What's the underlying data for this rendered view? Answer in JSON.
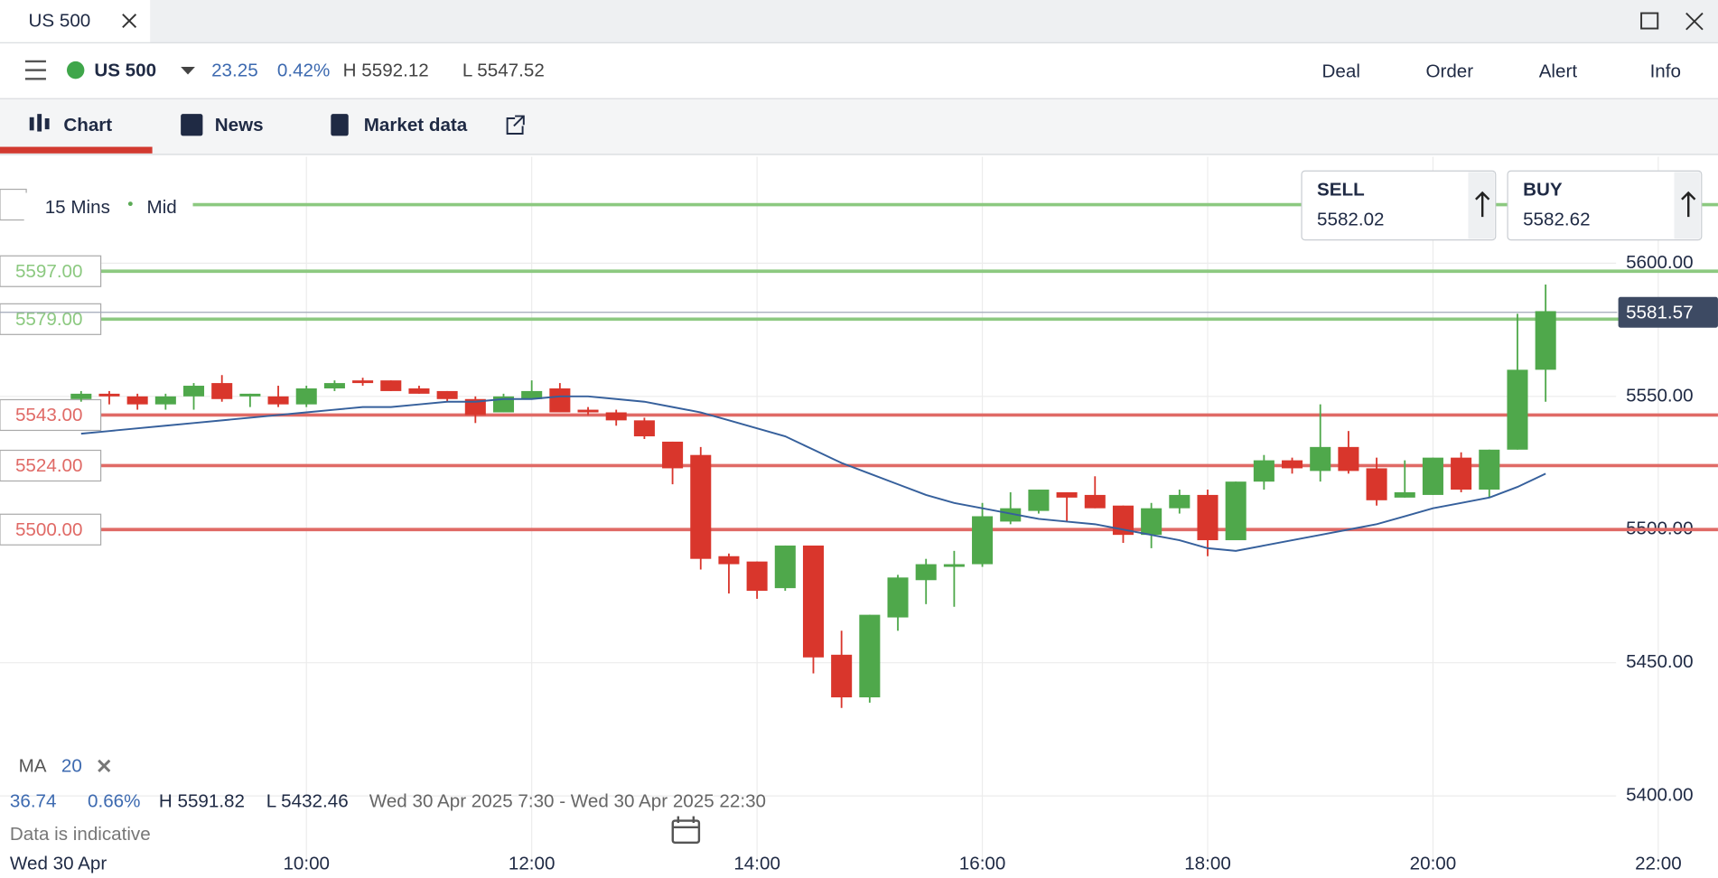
{
  "window": {
    "tab_title": "US 500"
  },
  "header": {
    "instrument": "US 500",
    "change": "23.25",
    "change_pct": "0.42%",
    "high": "H 5592.12",
    "low": "L 5547.52",
    "actions": [
      "Deal",
      "Order",
      "Alert",
      "Info"
    ]
  },
  "nav": {
    "tabs": [
      "Chart",
      "News",
      "Market data"
    ]
  },
  "ticket": {
    "sell_label": "SELL",
    "sell_price": "5582.02",
    "buy_label": "BUY",
    "buy_price": "5582.62"
  },
  "footer": {
    "change": "36.74",
    "change_pct": "0.66%",
    "high": "H 5591.82",
    "low": "L 5432.46",
    "range": "Wed 30 Apr 2025 7:30 - Wed 30 Apr 2025 22:30",
    "note": "Data is indicative"
  },
  "chart_data": {
    "type": "candlestick",
    "interval": "15 Mins",
    "price_type": "Mid",
    "x_start_label": "Wed 30 Apr",
    "x": [
      8,
      8.25,
      8.5,
      8.75,
      9,
      9.25,
      9.5,
      9.75,
      10,
      10.25,
      10.5,
      10.75,
      11,
      11.25,
      11.5,
      11.75,
      12,
      12.25,
      12.5,
      12.75,
      13,
      13.25,
      13.5,
      13.75,
      14,
      14.25,
      14.5,
      14.75,
      15,
      15.25,
      15.5,
      15.75,
      16,
      16.25,
      16.5,
      16.75,
      17,
      17.25,
      17.5,
      17.75,
      18,
      18.25,
      18.5,
      18.75,
      19,
      19.25,
      19.5,
      19.75,
      20,
      20.25,
      20.5,
      20.75,
      21
    ],
    "open": [
      5549,
      5551,
      5550,
      5547,
      5550,
      5555,
      5550,
      5550,
      5547,
      5553,
      5556,
      5556,
      5553,
      5552,
      5549,
      5544,
      5549,
      5553,
      5545,
      5544,
      5541,
      5533,
      5528,
      5490,
      5488,
      5478,
      5494,
      5453,
      5437,
      5467,
      5481,
      5486,
      5487,
      5503,
      5507,
      5514,
      5513,
      5509,
      5498,
      5508,
      5513,
      5496,
      5518,
      5526,
      5522,
      5531,
      5523,
      5512,
      5513,
      5527,
      5515,
      5530,
      5560
    ],
    "high": [
      5552,
      5552,
      5551,
      5551,
      5555,
      5558,
      5551,
      5554,
      5554,
      5556,
      5557,
      5556,
      5554,
      5552,
      5550,
      5551,
      5556,
      5555,
      5546,
      5545,
      5542,
      5533,
      5531,
      5491,
      5488,
      5494,
      5494,
      5462,
      5468,
      5483,
      5489,
      5492,
      5510,
      5514,
      5515,
      5514,
      5520,
      5509,
      5510,
      5515,
      5515,
      5518,
      5528,
      5527,
      5547,
      5537,
      5527,
      5526,
      5527,
      5529,
      5530,
      5581,
      5592
    ],
    "low": [
      5548,
      5547,
      5545,
      5545,
      5545,
      5548,
      5546,
      5546,
      5546,
      5552,
      5554,
      5552,
      5551,
      5548,
      5540,
      5544,
      5549,
      5544,
      5543,
      5539,
      5534,
      5517,
      5485,
      5476,
      5474,
      5477,
      5446,
      5433,
      5435,
      5462,
      5472,
      5471,
      5486,
      5502,
      5506,
      5503,
      5508,
      5495,
      5493,
      5506,
      5490,
      5496,
      5515,
      5521,
      5518,
      5521,
      5509,
      5512,
      5513,
      5514,
      5512,
      5530,
      5548
    ],
    "close": [
      5551,
      5550,
      5547,
      5550,
      5554,
      5549,
      5551,
      5547,
      5553,
      5555,
      5555,
      5552,
      5551,
      5549,
      5543,
      5550,
      5552,
      5544,
      5544,
      5541,
      5535,
      5523,
      5489,
      5487,
      5477,
      5494,
      5452,
      5437,
      5468,
      5482,
      5487,
      5487,
      5505,
      5508,
      5515,
      5512,
      5508,
      5498,
      5508,
      5513,
      5496,
      5518,
      5526,
      5523,
      5531,
      5522,
      5511,
      5514,
      5527,
      5515,
      5530,
      5560,
      5582
    ],
    "up_color": "#4fa84b",
    "down_color": "#d9362c",
    "series": [
      {
        "name": "MA",
        "period": 20,
        "color": "#36609c",
        "values": [
          5536,
          5537,
          5538,
          5539,
          5540,
          5541,
          5542,
          5543,
          5544,
          5545,
          5546,
          5546,
          5547,
          5548,
          5548,
          5549,
          5549,
          5550,
          5550,
          5549,
          5548,
          5546,
          5544,
          5541,
          5538,
          5535,
          5530,
          5525,
          5521,
          5517,
          5513,
          5510,
          5508,
          5506,
          5504,
          5503,
          5502,
          5500,
          5498,
          5496,
          5493,
          5492,
          5494,
          5496,
          5498,
          5500,
          5502,
          5505,
          5508,
          5510,
          5512,
          5516,
          5521
        ]
      }
    ],
    "levels": [
      {
        "value": 5622,
        "color": "#8cc980"
      },
      {
        "value": 5597,
        "label": "5597.00",
        "color": "#8cc980"
      },
      {
        "value": 5579,
        "label": "5579.00",
        "color": "#8cc980"
      },
      {
        "value": 5543,
        "label": "5543.00",
        "color": "#e06a66"
      },
      {
        "value": 5524,
        "label": "5524.00",
        "color": "#e06a66"
      },
      {
        "value": 5500,
        "label": "5500.00",
        "color": "#e06a66"
      }
    ],
    "last_price": 5581.57,
    "xlim": [
      7.28,
      22.53
    ],
    "ylim": [
      5380,
      5640
    ],
    "xticks": [
      {
        "value": 10,
        "label": "10:00"
      },
      {
        "value": 12,
        "label": "12:00"
      },
      {
        "value": 14,
        "label": "14:00"
      },
      {
        "value": 16,
        "label": "16:00"
      },
      {
        "value": 18,
        "label": "18:00"
      },
      {
        "value": 20,
        "label": "20:00"
      },
      {
        "value": 22,
        "label": "22:00"
      }
    ],
    "yticks": [
      {
        "value": 5400,
        "label": "5400.00"
      },
      {
        "value": 5450,
        "label": "5450.00"
      },
      {
        "value": 5500,
        "label": "5500.00"
      },
      {
        "value": 5550,
        "label": "5550.00"
      },
      {
        "value": 5600,
        "label": "5600.00"
      }
    ],
    "grid": true
  }
}
